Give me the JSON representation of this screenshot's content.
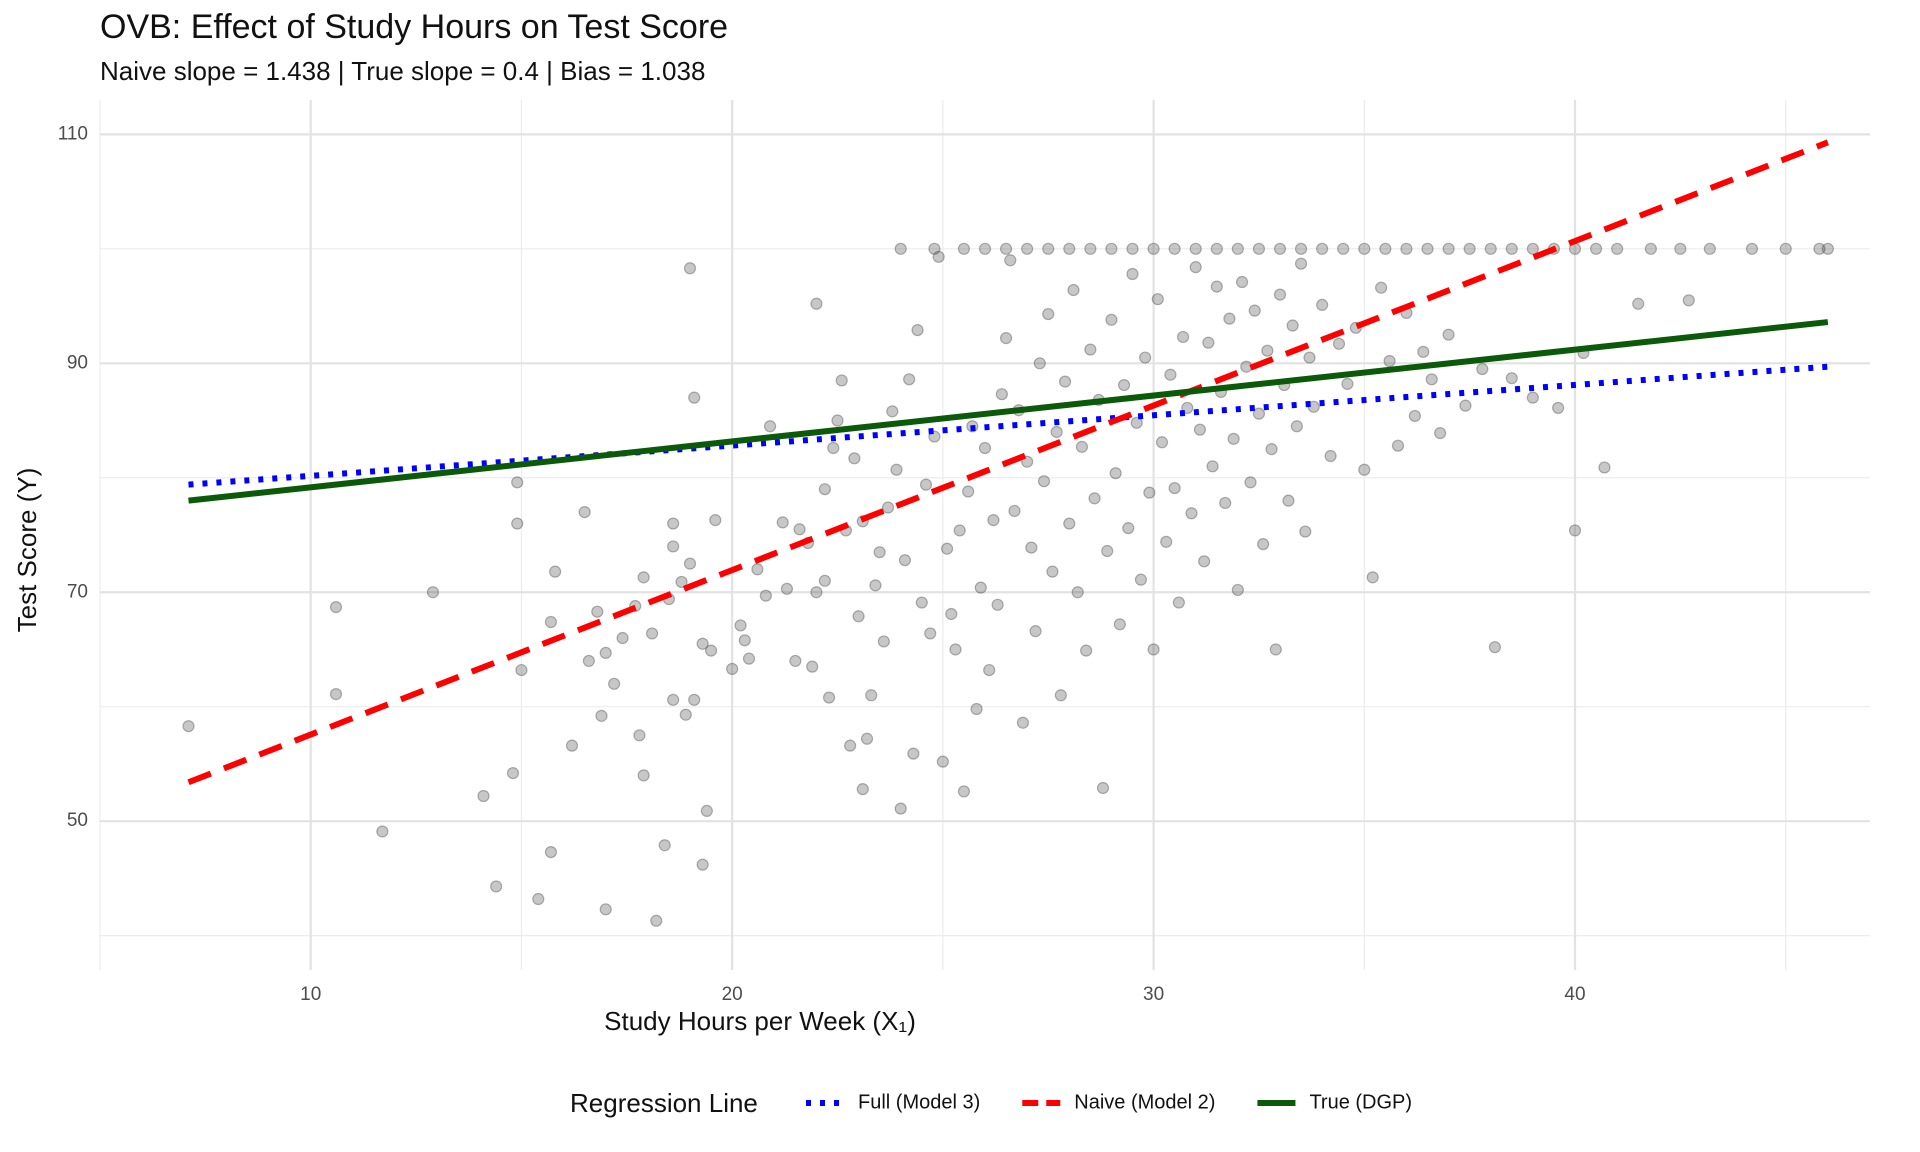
{
  "chart_data": {
    "type": "scatter",
    "title": "OVB: Effect of Study Hours on Test Score",
    "subtitle": "Naive slope = 1.438 | True slope = 0.4 | Bias = 1.038",
    "xlabel": "Study Hours per Week (X₁)",
    "ylabel": "Test Score (Y)",
    "xlim": [
      5,
      47
    ],
    "ylim": [
      37,
      113
    ],
    "xticks": [
      10,
      20,
      30,
      40
    ],
    "yticks": [
      50,
      70,
      90,
      110
    ],
    "grid": true,
    "legend_position": "bottom",
    "legend_title": "Regression Line",
    "series": [
      {
        "name": "Full (Model 3)",
        "color": "#0000ff",
        "dash": "dotted",
        "x": [
          7.1,
          46.0
        ],
        "y": [
          79.4,
          89.7
        ]
      },
      {
        "name": "Naive (Model 2)",
        "color": "#ff0000",
        "dash": "dashed",
        "x": [
          7.1,
          46.0
        ],
        "y": [
          53.4,
          109.3
        ]
      },
      {
        "name": "True (DGP)",
        "color": "#0a5a0a",
        "dash": "solid",
        "x": [
          7.1,
          46.0
        ],
        "y": [
          78.0,
          93.6
        ]
      }
    ],
    "points": [
      [
        7.1,
        58.3
      ],
      [
        10.6,
        68.7
      ],
      [
        10.6,
        61.1
      ],
      [
        11.7,
        49.1
      ],
      [
        12.9,
        70.0
      ],
      [
        14.1,
        52.2
      ],
      [
        14.4,
        44.3
      ],
      [
        14.8,
        54.2
      ],
      [
        14.9,
        79.6
      ],
      [
        14.9,
        76.0
      ],
      [
        15.0,
        63.2
      ],
      [
        15.4,
        43.2
      ],
      [
        15.7,
        47.3
      ],
      [
        15.7,
        67.4
      ],
      [
        15.8,
        71.8
      ],
      [
        16.2,
        56.6
      ],
      [
        16.5,
        77.0
      ],
      [
        16.6,
        64.0
      ],
      [
        16.8,
        68.3
      ],
      [
        16.9,
        59.2
      ],
      [
        17.0,
        42.3
      ],
      [
        17.0,
        64.7
      ],
      [
        17.2,
        62.0
      ],
      [
        17.4,
        66.0
      ],
      [
        17.7,
        68.8
      ],
      [
        17.8,
        57.5
      ],
      [
        17.9,
        71.3
      ],
      [
        17.9,
        54.0
      ],
      [
        18.1,
        66.4
      ],
      [
        18.2,
        41.3
      ],
      [
        18.4,
        47.9
      ],
      [
        18.5,
        69.4
      ],
      [
        18.6,
        76.0
      ],
      [
        18.6,
        74.0
      ],
      [
        18.6,
        60.6
      ],
      [
        18.8,
        70.9
      ],
      [
        18.9,
        59.3
      ],
      [
        19.0,
        72.5
      ],
      [
        19.0,
        98.3
      ],
      [
        19.1,
        87.0
      ],
      [
        19.1,
        60.6
      ],
      [
        19.3,
        46.2
      ],
      [
        19.3,
        65.5
      ],
      [
        19.4,
        50.9
      ],
      [
        19.5,
        64.9
      ],
      [
        19.6,
        76.3
      ],
      [
        20.0,
        63.3
      ],
      [
        20.2,
        67.1
      ],
      [
        20.3,
        65.8
      ],
      [
        20.4,
        64.2
      ],
      [
        20.6,
        72.0
      ],
      [
        20.8,
        69.7
      ],
      [
        20.9,
        84.5
      ],
      [
        21.2,
        76.1
      ],
      [
        21.3,
        70.3
      ],
      [
        21.5,
        64.0
      ],
      [
        21.6,
        75.5
      ],
      [
        21.8,
        74.3
      ],
      [
        21.9,
        63.5
      ],
      [
        22.0,
        95.2
      ],
      [
        22.0,
        70.0
      ],
      [
        22.2,
        79.0
      ],
      [
        22.2,
        71.0
      ],
      [
        22.3,
        60.8
      ],
      [
        22.4,
        82.6
      ],
      [
        22.5,
        85.0
      ],
      [
        22.6,
        88.5
      ],
      [
        22.7,
        75.4
      ],
      [
        22.8,
        56.6
      ],
      [
        22.9,
        81.7
      ],
      [
        23.0,
        67.9
      ],
      [
        23.1,
        52.8
      ],
      [
        23.1,
        76.2
      ],
      [
        23.2,
        57.2
      ],
      [
        23.3,
        61.0
      ],
      [
        23.4,
        70.6
      ],
      [
        23.5,
        73.5
      ],
      [
        23.6,
        65.7
      ],
      [
        23.7,
        77.4
      ],
      [
        23.8,
        85.8
      ],
      [
        23.9,
        80.7
      ],
      [
        24.0,
        51.1
      ],
      [
        24.1,
        72.8
      ],
      [
        24.2,
        88.6
      ],
      [
        24.3,
        55.9
      ],
      [
        24.4,
        92.9
      ],
      [
        24.5,
        69.1
      ],
      [
        24.6,
        79.4
      ],
      [
        24.7,
        66.4
      ],
      [
        24.8,
        83.6
      ],
      [
        24.9,
        99.3
      ],
      [
        25.0,
        55.2
      ],
      [
        25.1,
        73.8
      ],
      [
        25.2,
        68.1
      ],
      [
        25.3,
        65.0
      ],
      [
        25.4,
        75.4
      ],
      [
        25.5,
        52.6
      ],
      [
        25.6,
        78.8
      ],
      [
        25.7,
        84.5
      ],
      [
        25.8,
        59.8
      ],
      [
        25.9,
        70.4
      ],
      [
        26.0,
        82.6
      ],
      [
        26.1,
        63.2
      ],
      [
        26.2,
        76.3
      ],
      [
        26.3,
        68.9
      ],
      [
        26.4,
        87.3
      ],
      [
        26.5,
        92.2
      ],
      [
        26.6,
        99.0
      ],
      [
        26.7,
        77.1
      ],
      [
        26.8,
        85.9
      ],
      [
        26.9,
        58.6
      ],
      [
        27.0,
        81.4
      ],
      [
        27.1,
        73.9
      ],
      [
        27.2,
        66.6
      ],
      [
        27.3,
        90.0
      ],
      [
        27.4,
        79.7
      ],
      [
        27.5,
        94.3
      ],
      [
        27.6,
        71.8
      ],
      [
        27.7,
        84.0
      ],
      [
        27.8,
        61.0
      ],
      [
        27.9,
        88.4
      ],
      [
        28.0,
        76.0
      ],
      [
        28.1,
        96.4
      ],
      [
        28.2,
        70.0
      ],
      [
        28.3,
        82.7
      ],
      [
        28.4,
        64.9
      ],
      [
        28.5,
        91.2
      ],
      [
        28.6,
        78.2
      ],
      [
        28.7,
        86.8
      ],
      [
        28.8,
        52.9
      ],
      [
        28.9,
        73.6
      ],
      [
        29.0,
        93.8
      ],
      [
        29.1,
        80.4
      ],
      [
        29.2,
        67.2
      ],
      [
        29.3,
        88.1
      ],
      [
        29.4,
        75.6
      ],
      [
        29.5,
        97.8
      ],
      [
        29.6,
        84.8
      ],
      [
        29.7,
        71.1
      ],
      [
        29.8,
        90.5
      ],
      [
        29.9,
        78.7
      ],
      [
        30.0,
        65.0
      ],
      [
        30.1,
        95.6
      ],
      [
        30.2,
        83.1
      ],
      [
        30.3,
        74.4
      ],
      [
        30.4,
        89.0
      ],
      [
        30.5,
        79.1
      ],
      [
        30.6,
        69.1
      ],
      [
        30.7,
        92.3
      ],
      [
        30.8,
        86.1
      ],
      [
        30.9,
        76.9
      ],
      [
        31.0,
        98.4
      ],
      [
        31.1,
        84.2
      ],
      [
        31.2,
        72.7
      ],
      [
        31.3,
        91.8
      ],
      [
        31.4,
        81.0
      ],
      [
        31.5,
        96.7
      ],
      [
        31.6,
        87.5
      ],
      [
        31.7,
        77.8
      ],
      [
        31.8,
        93.9
      ],
      [
        31.9,
        83.4
      ],
      [
        32.0,
        70.2
      ],
      [
        32.1,
        97.1
      ],
      [
        32.2,
        89.7
      ],
      [
        32.3,
        79.6
      ],
      [
        32.4,
        94.6
      ],
      [
        32.5,
        85.6
      ],
      [
        32.6,
        74.2
      ],
      [
        32.7,
        91.1
      ],
      [
        32.8,
        82.5
      ],
      [
        32.9,
        65.0
      ],
      [
        33.0,
        96.0
      ],
      [
        33.1,
        88.1
      ],
      [
        33.2,
        78.0
      ],
      [
        33.3,
        93.3
      ],
      [
        33.4,
        84.5
      ],
      [
        33.5,
        98.7
      ],
      [
        33.6,
        75.3
      ],
      [
        33.7,
        90.5
      ],
      [
        33.8,
        86.2
      ],
      [
        34.0,
        95.1
      ],
      [
        34.2,
        81.9
      ],
      [
        34.4,
        91.7
      ],
      [
        34.6,
        88.2
      ],
      [
        34.8,
        93.1
      ],
      [
        35.0,
        80.7
      ],
      [
        35.2,
        71.3
      ],
      [
        35.4,
        96.6
      ],
      [
        35.6,
        90.2
      ],
      [
        35.8,
        82.8
      ],
      [
        36.0,
        94.4
      ],
      [
        36.2,
        85.4
      ],
      [
        36.4,
        91.0
      ],
      [
        36.6,
        88.6
      ],
      [
        36.8,
        83.9
      ],
      [
        37.0,
        92.5
      ],
      [
        37.4,
        86.3
      ],
      [
        37.8,
        89.5
      ],
      [
        38.1,
        65.2
      ],
      [
        38.5,
        88.7
      ],
      [
        39.0,
        87.0
      ],
      [
        39.6,
        86.1
      ],
      [
        40.0,
        75.4
      ],
      [
        40.2,
        90.9
      ],
      [
        40.7,
        80.9
      ],
      [
        41.5,
        95.2
      ],
      [
        42.7,
        95.5
      ],
      [
        24.0,
        100
      ],
      [
        24.8,
        100
      ],
      [
        25.5,
        100
      ],
      [
        26.0,
        100
      ],
      [
        26.5,
        100
      ],
      [
        27.0,
        100
      ],
      [
        27.5,
        100
      ],
      [
        28.0,
        100
      ],
      [
        28.5,
        100
      ],
      [
        29.0,
        100
      ],
      [
        29.5,
        100
      ],
      [
        30.0,
        100
      ],
      [
        30.5,
        100
      ],
      [
        31.0,
        100
      ],
      [
        31.5,
        100
      ],
      [
        32.0,
        100
      ],
      [
        32.5,
        100
      ],
      [
        33.0,
        100
      ],
      [
        33.5,
        100
      ],
      [
        34.0,
        100
      ],
      [
        34.5,
        100
      ],
      [
        35.0,
        100
      ],
      [
        35.5,
        100
      ],
      [
        36.0,
        100
      ],
      [
        36.5,
        100
      ],
      [
        37.0,
        100
      ],
      [
        37.5,
        100
      ],
      [
        38.0,
        100
      ],
      [
        38.5,
        100
      ],
      [
        39.0,
        100
      ],
      [
        39.5,
        100
      ],
      [
        40.0,
        100
      ],
      [
        40.5,
        100
      ],
      [
        41.0,
        100
      ],
      [
        41.8,
        100
      ],
      [
        42.5,
        100
      ],
      [
        43.2,
        100
      ],
      [
        44.2,
        100
      ],
      [
        45.0,
        100
      ],
      [
        45.8,
        100
      ],
      [
        46.0,
        100
      ]
    ]
  }
}
